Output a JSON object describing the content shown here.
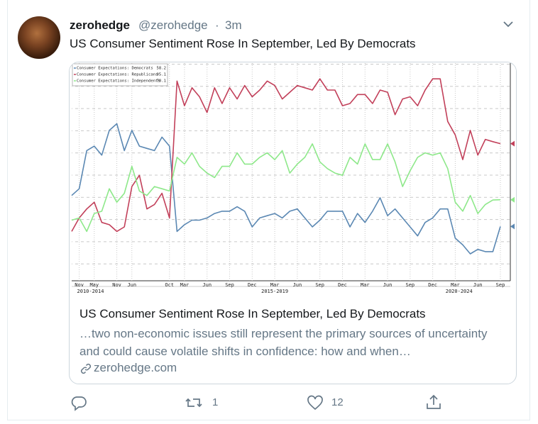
{
  "tweet": {
    "name": "zerohedge",
    "handle": "@zerohedge",
    "separator": "·",
    "time": "3m",
    "text": "US Consumer Sentiment Rose In September, Led By Democrats"
  },
  "card": {
    "title": "US Consumer Sentiment Rose In September, Led By Democrats",
    "description": "…two non-economic issues still represent the primary sources of uncertainty and could cause volatile shifts in confidence: how and when…",
    "domain": "zerohedge.com"
  },
  "actions": {
    "retweets": 1,
    "likes": 12
  },
  "chart_data": {
    "type": "line",
    "grid": true,
    "legend": "top-left",
    "categories": [
      null,
      "Nov",
      null,
      "May",
      null,
      null,
      "Nov",
      null,
      "Jun",
      null,
      null,
      null,
      null,
      "Oct",
      null,
      "Mar",
      null,
      null,
      "Jun",
      null,
      null,
      "Sep",
      null,
      null,
      "Dec",
      null,
      null,
      "Mar",
      null,
      null,
      "Jun",
      null,
      null,
      "Sep",
      null,
      null,
      "Dec",
      null,
      null,
      "Mar",
      null,
      null,
      "Jun",
      null,
      null,
      "Sep",
      null,
      null,
      "Dec",
      null,
      null,
      "Mar",
      null,
      null,
      "Jun",
      null,
      null,
      "Sep"
    ],
    "x_groups": [
      "2010-2014",
      "2015-2019",
      "2020-2024"
    ],
    "ylim": [
      34,
      131
    ],
    "series": [
      {
        "name": "Consumer Expectations: Democrats",
        "color": "#5b88b3",
        "values": [
          72,
          75,
          92,
          94,
          90,
          101,
          104,
          92,
          101,
          94,
          93,
          92,
          98,
          94,
          56,
          59,
          61,
          61,
          62,
          64,
          65,
          65,
          67,
          65,
          58,
          62,
          63,
          64,
          62,
          65,
          66,
          62,
          58,
          61,
          65,
          65,
          65,
          58,
          64,
          60,
          65,
          71,
          63,
          66,
          62,
          58,
          54,
          60,
          62,
          66,
          66,
          53,
          50,
          46,
          48,
          47,
          47,
          58.2
        ]
      },
      {
        "name": "Consumer Expectations: Republicans",
        "color": "#c2405a",
        "values": [
          56,
          62,
          66,
          69,
          60,
          59,
          56,
          58,
          76,
          81,
          66,
          68,
          73,
          62,
          123,
          112,
          120,
          116,
          109,
          120,
          113,
          120,
          115,
          121,
          116,
          119,
          123,
          121,
          115,
          118,
          121,
          120,
          119,
          124,
          119,
          119,
          112,
          113,
          117,
          117,
          113,
          119,
          118,
          108,
          115,
          116,
          112,
          119,
          124,
          124,
          105,
          99,
          88,
          101,
          90,
          97,
          96,
          95.1
        ]
      },
      {
        "name": "Consumer Expectations: Independents",
        "color": "#8ee88a",
        "values": [
          61,
          62,
          56,
          64,
          65,
          75,
          69,
          73,
          85,
          74,
          72,
          76,
          75,
          74,
          89,
          86,
          91,
          85,
          82,
          80,
          85,
          85,
          91,
          86,
          86,
          89,
          91,
          88,
          92,
          82,
          86,
          89,
          95,
          87,
          84,
          82,
          81,
          89,
          86,
          95,
          88,
          88,
          95,
          87,
          76,
          83,
          89,
          91,
          90,
          91,
          84,
          69,
          65,
          72,
          64,
          68,
          70,
          70.1
        ]
      }
    ]
  }
}
